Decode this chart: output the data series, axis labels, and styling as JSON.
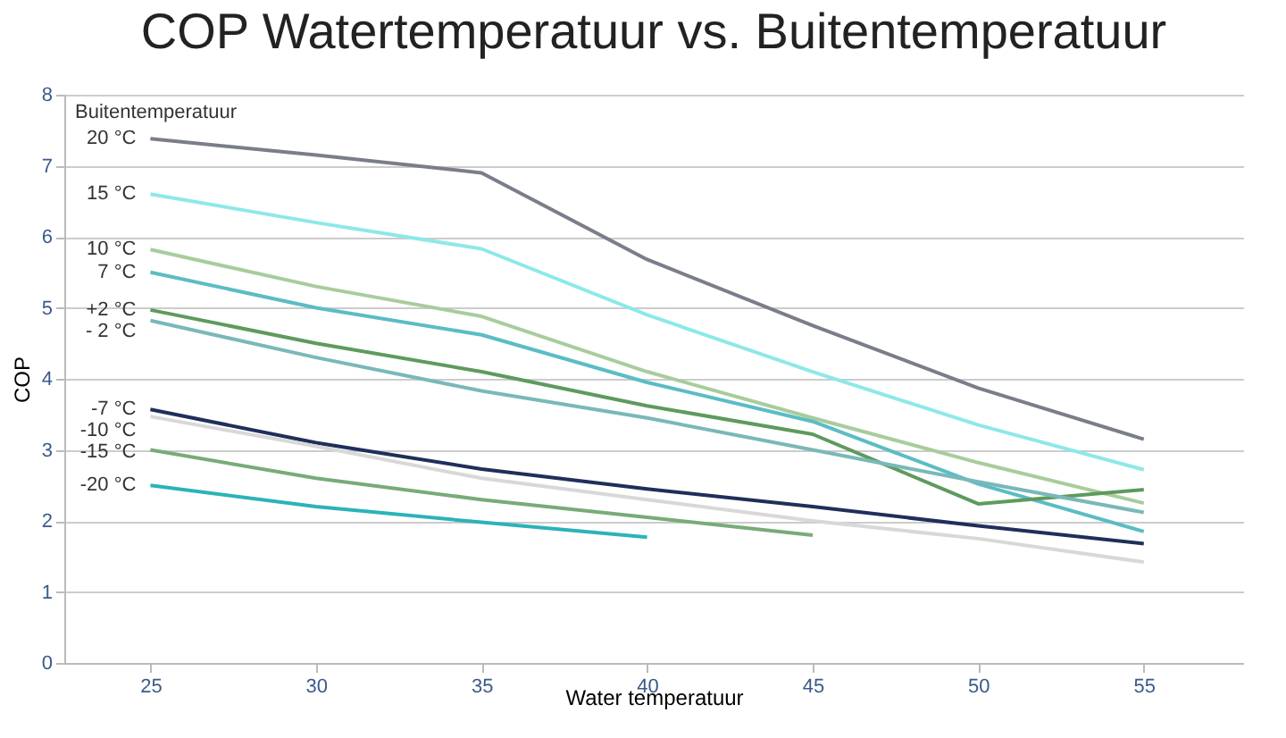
{
  "chart_data": {
    "type": "line",
    "title": "COP Watertemperatuur vs. Buitentemperatuur",
    "xlabel": "Water temperatuur",
    "ylabel": "COP",
    "legend_title": "Buitentemperatuur",
    "x": [
      25,
      30,
      35,
      40,
      45,
      50,
      55
    ],
    "series": [
      {
        "name": "20 °C",
        "color": "#7a7d8a",
        "values": [
          7.38,
          7.15,
          6.9,
          5.68,
          4.75,
          3.87,
          3.15
        ]
      },
      {
        "name": "15 °C",
        "color": "#8ee8e8",
        "values": [
          6.6,
          6.2,
          5.83,
          4.9,
          4.1,
          3.35,
          2.72
        ]
      },
      {
        "name": "10 °C",
        "color": "#a8cc9c",
        "values": [
          5.82,
          5.3,
          4.88,
          4.1,
          3.45,
          2.82,
          2.25
        ]
      },
      {
        "name": "7 °C",
        "color": "#5bbcc4",
        "values": [
          5.5,
          5.0,
          4.62,
          3.95,
          3.4,
          2.52,
          1.85
        ]
      },
      {
        "name": "+2 °C",
        "color": "#5e9a5e",
        "values": [
          4.97,
          4.5,
          4.1,
          3.62,
          3.22,
          2.24,
          2.44
        ]
      },
      {
        "name": "- 2 °C",
        "color": "#7ab8b8",
        "values": [
          4.82,
          4.3,
          3.83,
          3.45,
          3.0,
          2.55,
          2.12
        ]
      },
      {
        "name": "-7 °C",
        "color": "#1f2f5a",
        "values": [
          3.57,
          3.1,
          2.73,
          2.45,
          2.2,
          1.93,
          1.68
        ]
      },
      {
        "name": "-10 °C",
        "color": "#d8d8d8",
        "values": [
          3.47,
          3.05,
          2.6,
          2.3,
          2.0,
          1.75,
          1.42
        ]
      },
      {
        "name": "-15 °C",
        "color": "#78ab78",
        "values": [
          3.0,
          2.6,
          2.3,
          2.05,
          1.8,
          null,
          null
        ]
      },
      {
        "name": "-20 °C",
        "color": "#2bb3b8",
        "values": [
          2.5,
          2.2,
          1.98,
          1.77,
          null,
          null,
          null
        ]
      }
    ],
    "xlim": [
      22.4,
      58
    ],
    "xticks": [
      25,
      30,
      35,
      40,
      45,
      50,
      55
    ],
    "ylim": [
      0,
      8
    ],
    "yticks": [
      0,
      1,
      2,
      3,
      4,
      5,
      6,
      7,
      8
    ],
    "grid": "y",
    "legend": false,
    "marker": "none",
    "line_style": "solid"
  }
}
